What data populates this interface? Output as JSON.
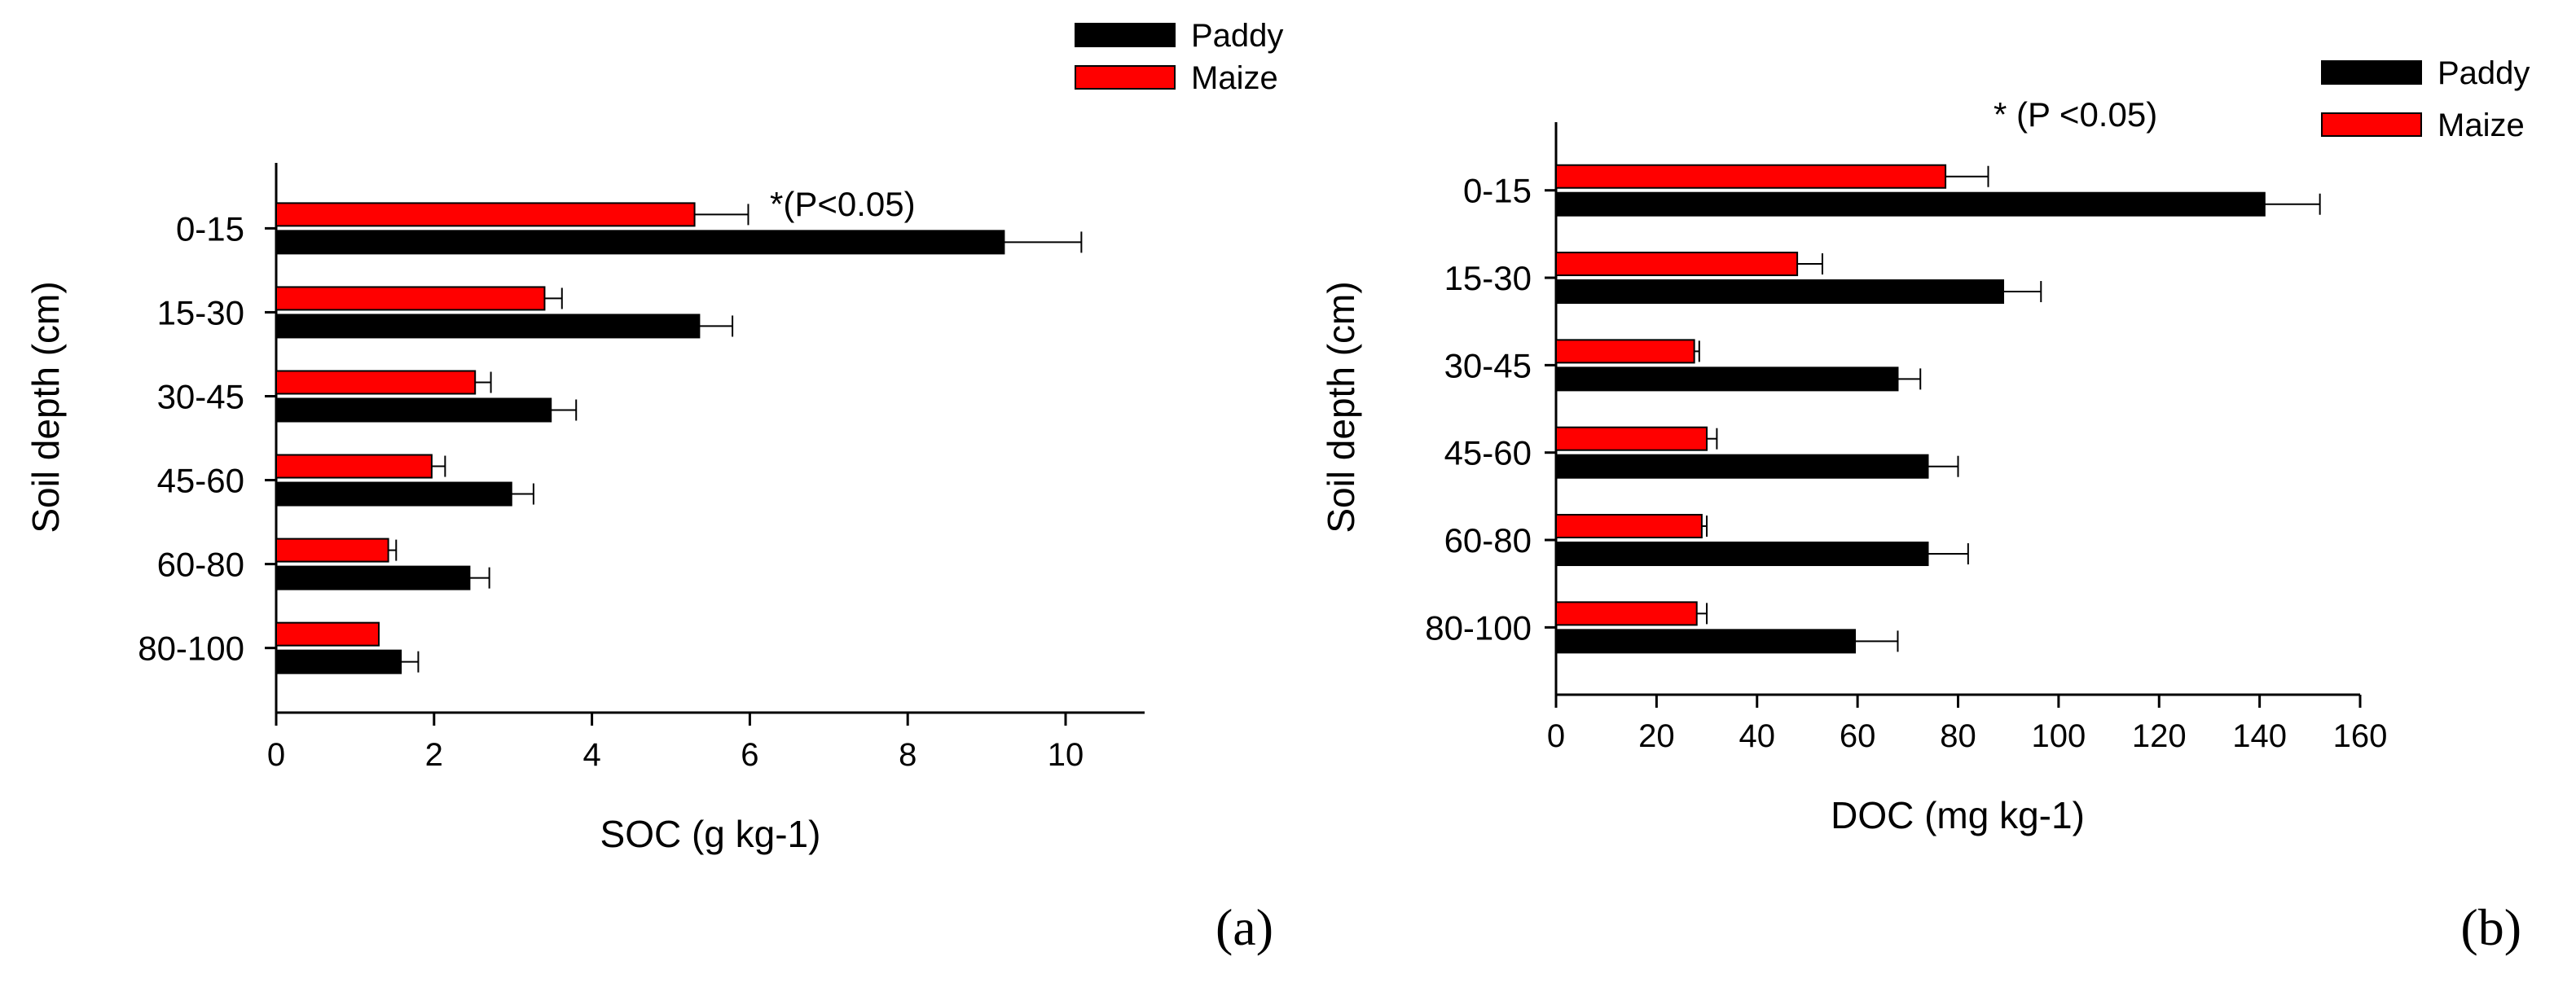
{
  "colors": {
    "paddy": "#000000",
    "maize": "#ff0000",
    "axis": "#000000"
  },
  "chart_data": [
    {
      "type": "bar",
      "orientation": "horizontal",
      "panel_label": "(a)",
      "xlabel": "SOC (g kg-1)",
      "ylabel": "Soil depth (cm)",
      "xlim": [
        0,
        11
      ],
      "xticks": [
        0,
        2,
        4,
        6,
        8,
        10
      ],
      "categories": [
        "0-15",
        "15-30",
        "30-45",
        "45-60",
        "60-80",
        "80-100"
      ],
      "series": [
        {
          "name": "Paddy",
          "color": "#000000",
          "values": [
            9.22,
            5.36,
            3.48,
            2.98,
            2.45,
            1.58
          ],
          "errors": [
            0.98,
            0.42,
            0.32,
            0.28,
            0.25,
            0.22
          ]
        },
        {
          "name": "Maize",
          "color": "#ff0000",
          "values": [
            5.3,
            3.4,
            2.52,
            1.97,
            1.42,
            1.3
          ],
          "errors": [
            0.68,
            0.22,
            0.2,
            0.17,
            0.1,
            0
          ]
        }
      ],
      "legend": [
        "Paddy",
        "Maize"
      ],
      "legend_position": "top-right",
      "annotation": "*(P<0.05)"
    },
    {
      "type": "bar",
      "orientation": "horizontal",
      "panel_label": "(b)",
      "xlabel": "DOC (mg kg-1)",
      "ylabel": "Soil depth (cm)",
      "xlim": [
        0,
        160
      ],
      "xticks": [
        0,
        20,
        40,
        60,
        80,
        100,
        120,
        140,
        160
      ],
      "categories": [
        "0-15",
        "15-30",
        "30-45",
        "45-60",
        "60-80",
        "80-100"
      ],
      "series": [
        {
          "name": "Paddy",
          "color": "#000000",
          "values": [
            141,
            89,
            68,
            74,
            74,
            59.5
          ],
          "errors": [
            11,
            7.5,
            4.5,
            6,
            8,
            8.5
          ]
        },
        {
          "name": "Maize",
          "color": "#ff0000",
          "values": [
            77.5,
            48,
            27.5,
            30,
            29,
            28
          ],
          "errors": [
            8.5,
            5,
            1,
            2,
            1,
            2
          ]
        }
      ],
      "legend": [
        "Paddy",
        "Maize"
      ],
      "legend_position": "top-right",
      "annotation": "* (P <0.05)"
    }
  ]
}
